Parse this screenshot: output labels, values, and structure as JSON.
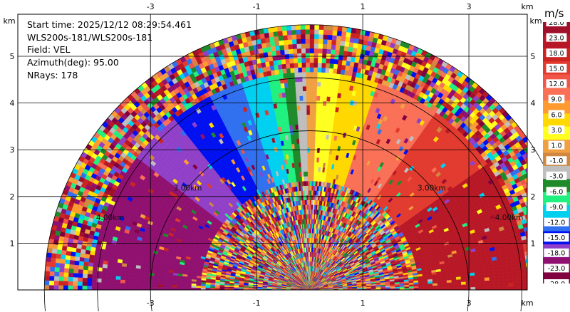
{
  "chart_data": {
    "type": "heatmap",
    "subtype": "radar-ppi-sector",
    "field": "VEL",
    "unit": "m/s",
    "x_unit": "km",
    "y_unit": "km",
    "xlim": [
      -5.5,
      4.1
    ],
    "ylim": [
      0,
      5.9
    ],
    "x_ticks": [
      "-3",
      "-1",
      "1",
      "3"
    ],
    "y_ticks": [
      "1",
      "2",
      "3",
      "4",
      "5"
    ],
    "grid": true,
    "range_rings_km": [
      3.0,
      4.0,
      5.0
    ],
    "range_ring_labels": [
      {
        "text": "3.00km",
        "ring": 3.0
      },
      {
        "text": "3.00km",
        "ring": 3.0
      },
      {
        "text": "4.00km",
        "ring": 4.0
      },
      {
        "text": "4.00km",
        "ring": 4.0
      }
    ],
    "colorbar": {
      "tick_labels": [
        "28.0",
        "23.0",
        "18.0",
        "15.0",
        "12.0",
        "9.0",
        "6.0",
        "3.0",
        "1.0",
        "-1.0",
        "-3.0",
        "-6.0",
        "-9.0",
        "-12.0",
        "-15.0",
        "-18.0",
        "-23.0",
        "-28.0"
      ],
      "colors": [
        "#a0102a",
        "#b81826",
        "#cc2420",
        "#e23a2e",
        "#f05548",
        "#f97056",
        "#ff9a30",
        "#ffd800",
        "#ffff20",
        "#f0a040",
        "#d08840",
        "#bebebe",
        "#1e8a2a",
        "#20f080",
        "#00d0f0",
        "#3070f0",
        "#0010f0",
        "#9040c8",
        "#901070",
        "#800040"
      ]
    },
    "metadata_text": {
      "start_time": "Start time: 2025/12/12 08:29:54.461",
      "instrument": "WLS200s-181/WLS200s-181",
      "field": "Field: VEL",
      "azimuth": "Azimuth(deg): 95.00",
      "nrays": "NRays: 178"
    }
  }
}
